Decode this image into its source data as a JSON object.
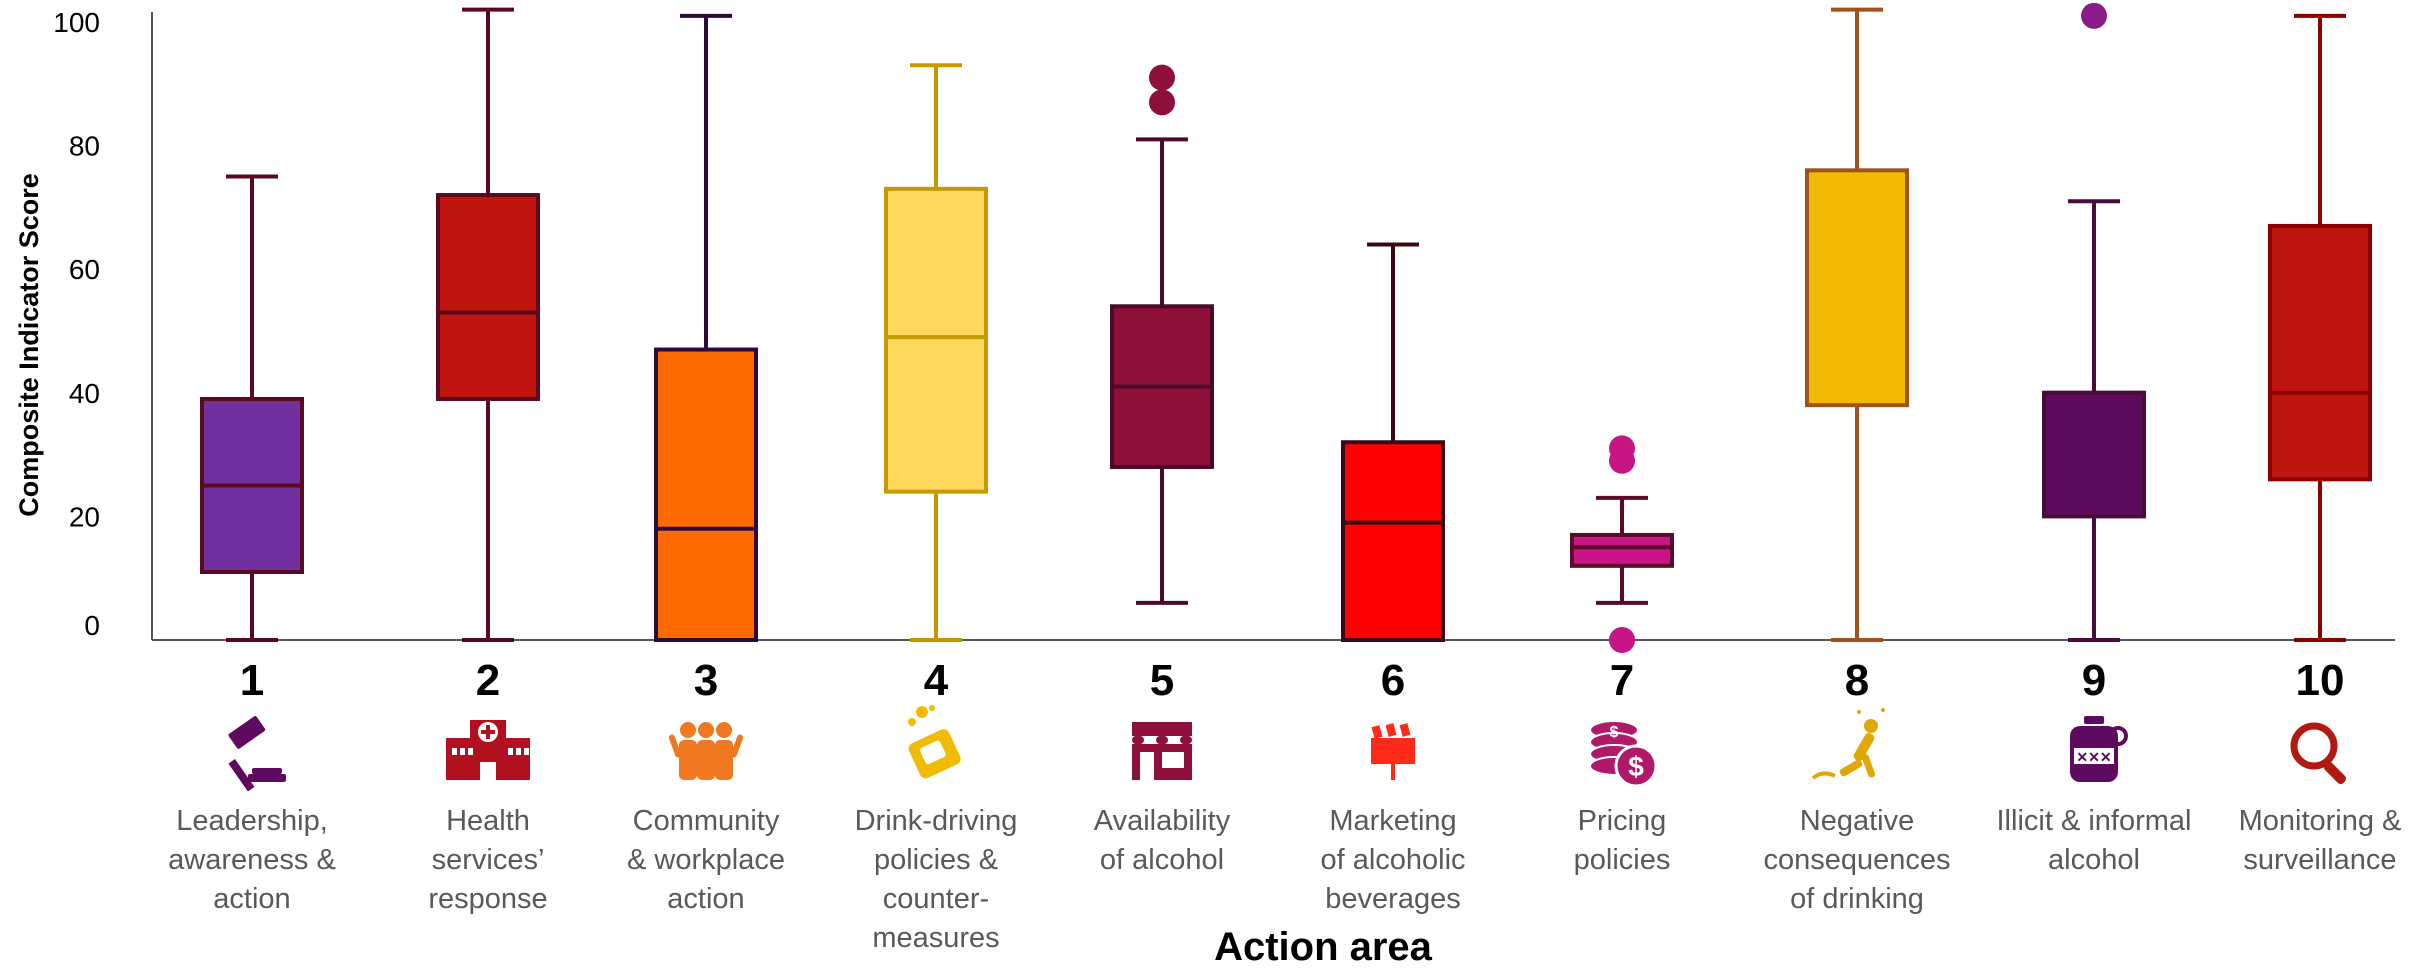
{
  "chart_data": {
    "type": "box",
    "xlabel": "Action area",
    "ylabel": "Composite Indicator Score",
    "ylim": [
      0,
      100
    ],
    "yticks": [
      "0",
      "20",
      "40",
      "60",
      "80",
      "100"
    ],
    "grid": false,
    "categories": [
      {
        "number": "1",
        "label_lines": [
          "Leadership,",
          "awareness &",
          "action"
        ],
        "icon": "gavel-icon",
        "color": "#7030A0",
        "stroke": "#5A0A1E",
        "min": 0,
        "q1": 11,
        "median": 25,
        "q3": 39,
        "max": 75,
        "outliers": []
      },
      {
        "number": "2",
        "label_lines": [
          "Health",
          "services’",
          "response"
        ],
        "icon": "hospital-icon",
        "color": "#C0140F",
        "stroke": "#5A0A1E",
        "min": 0,
        "q1": 39,
        "median": 53,
        "q3": 72,
        "max": 102,
        "outliers": []
      },
      {
        "number": "3",
        "label_lines": [
          "Community",
          "& workplace",
          "action"
        ],
        "icon": "people-icon",
        "color": "#FF6A00",
        "stroke": "#2E0A3A",
        "min": 0,
        "q1": 0,
        "median": 18,
        "q3": 47,
        "max": 101,
        "outliers": []
      },
      {
        "number": "4",
        "label_lines": [
          "Drink-driving",
          "policies &",
          "counter-",
          "measures"
        ],
        "icon": "crashed-car-icon",
        "color": "#FFD95E",
        "stroke": "#C49A00",
        "min": 0,
        "q1": 24,
        "median": 49,
        "q3": 73,
        "max": 93,
        "outliers": []
      },
      {
        "number": "5",
        "label_lines": [
          "Availability",
          "of alcohol"
        ],
        "icon": "storefront-icon",
        "color": "#8E1038",
        "stroke": "#4A0A2A",
        "min": 6,
        "q1": 28,
        "median": 41,
        "q3": 54,
        "max": 81,
        "outliers": [
          87,
          91
        ]
      },
      {
        "number": "6",
        "label_lines": [
          "Marketing",
          "of alcoholic",
          "beverages"
        ],
        "icon": "billboard-icon",
        "color": "#FF0000",
        "stroke": "#3A0A14",
        "min": 0,
        "q1": 0,
        "median": 19,
        "q3": 32,
        "max": 64,
        "outliers": []
      },
      {
        "number": "7",
        "label_lines": [
          "Pricing",
          "policies"
        ],
        "icon": "coins-icon",
        "color": "#C71585",
        "stroke": "#5A0A2A",
        "min": 6,
        "q1": 12,
        "median": 15,
        "q3": 17,
        "max": 23,
        "outliers": [
          0,
          29,
          31
        ]
      },
      {
        "number": "8",
        "label_lines": [
          "Negative",
          "consequences",
          "of drinking"
        ],
        "icon": "falling-person-icon",
        "color": "#F0BB00",
        "stroke": "#A0521A",
        "min": 0,
        "q1": 38,
        "median": null,
        "q3": 76,
        "max": 102,
        "outliers": []
      },
      {
        "number": "9",
        "label_lines": [
          "Illicit & informal",
          "alcohol"
        ],
        "icon": "jug-icon",
        "color": "#5E0A5E",
        "stroke": "#4A0A3A",
        "min": 0,
        "q1": 20,
        "median": 40,
        "q3": 40,
        "max": 71,
        "outliers": [
          101
        ]
      },
      {
        "number": "10",
        "label_lines": [
          "Monitoring &",
          "surveillance"
        ],
        "icon": "magnifier-icon",
        "color": "#C0140F",
        "stroke": "#8B0000",
        "min": 0,
        "q1": 26,
        "median": 40,
        "q3": 67,
        "max": 101,
        "outliers": []
      }
    ]
  }
}
